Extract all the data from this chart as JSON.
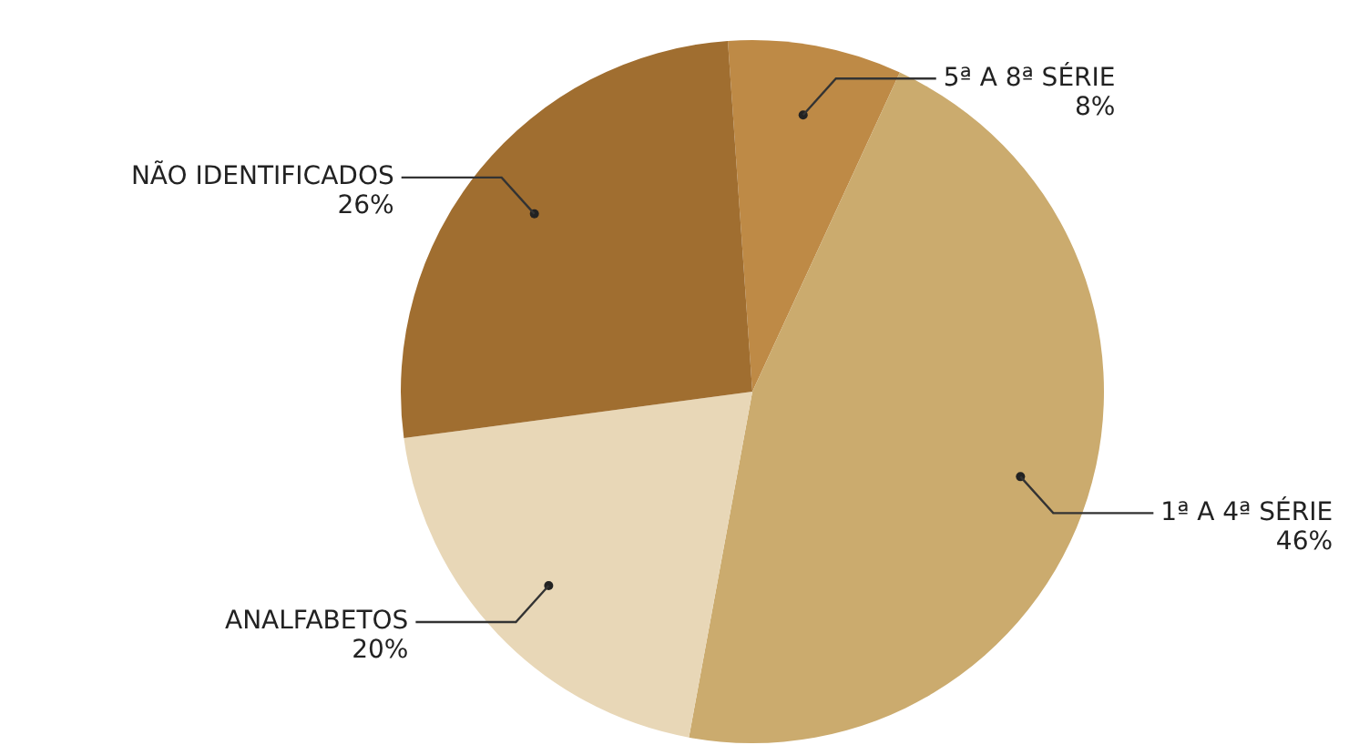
{
  "chart_data": {
    "type": "pie",
    "categories": [
      "5ª A 8ª SÉRIE",
      "1ª A 4ª SÉRIE",
      "ANALFABETOS",
      "NÃO IDENTIFICADOS"
    ],
    "values": [
      8,
      46,
      20,
      26
    ],
    "colors": [
      "#be8a46",
      "#cbab6e",
      "#e8d7b7",
      "#a06e30"
    ],
    "value_labels": [
      "8%",
      "46%",
      "20%",
      "26%"
    ],
    "legend": false
  }
}
